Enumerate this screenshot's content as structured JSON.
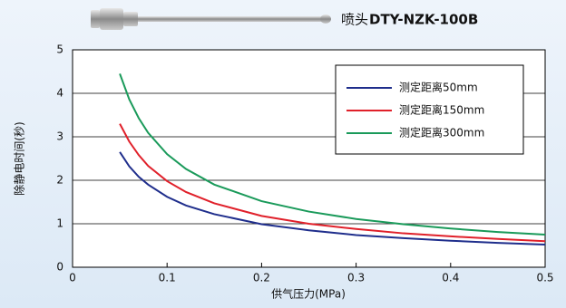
{
  "chart_data": {
    "type": "line",
    "title_prefix": "喷头",
    "title": "DTY-NZK-100B",
    "xlabel": "供气压力(MPa)",
    "ylabel": "除静电时间(秒)",
    "x": [
      0.05,
      0.06,
      0.07,
      0.08,
      0.1,
      0.12,
      0.15,
      0.2,
      0.25,
      0.3,
      0.35,
      0.4,
      0.45,
      0.5
    ],
    "series": [
      {
        "name": "测定距离50mm",
        "color": "#1f2e8c",
        "values": [
          2.65,
          2.32,
          2.08,
          1.9,
          1.62,
          1.42,
          1.22,
          0.99,
          0.85,
          0.74,
          0.67,
          0.61,
          0.56,
          0.52
        ]
      },
      {
        "name": "测定距离150mm",
        "color": "#e0202a",
        "values": [
          3.3,
          2.89,
          2.58,
          2.33,
          1.98,
          1.73,
          1.47,
          1.18,
          1.0,
          0.88,
          0.78,
          0.71,
          0.65,
          0.6
        ]
      },
      {
        "name": "测定距离300mm",
        "color": "#1a9a5a",
        "values": [
          4.45,
          3.86,
          3.43,
          3.09,
          2.6,
          2.26,
          1.9,
          1.52,
          1.28,
          1.11,
          0.99,
          0.89,
          0.81,
          0.75
        ]
      }
    ],
    "xlim": [
      0,
      0.5
    ],
    "xticks": [
      0,
      0.1,
      0.2,
      0.3,
      0.4,
      0.5
    ],
    "ylim": [
      0,
      5
    ],
    "yticks": [
      0,
      1,
      2,
      3,
      4,
      5
    ],
    "grid": true,
    "legend": "upper right"
  }
}
